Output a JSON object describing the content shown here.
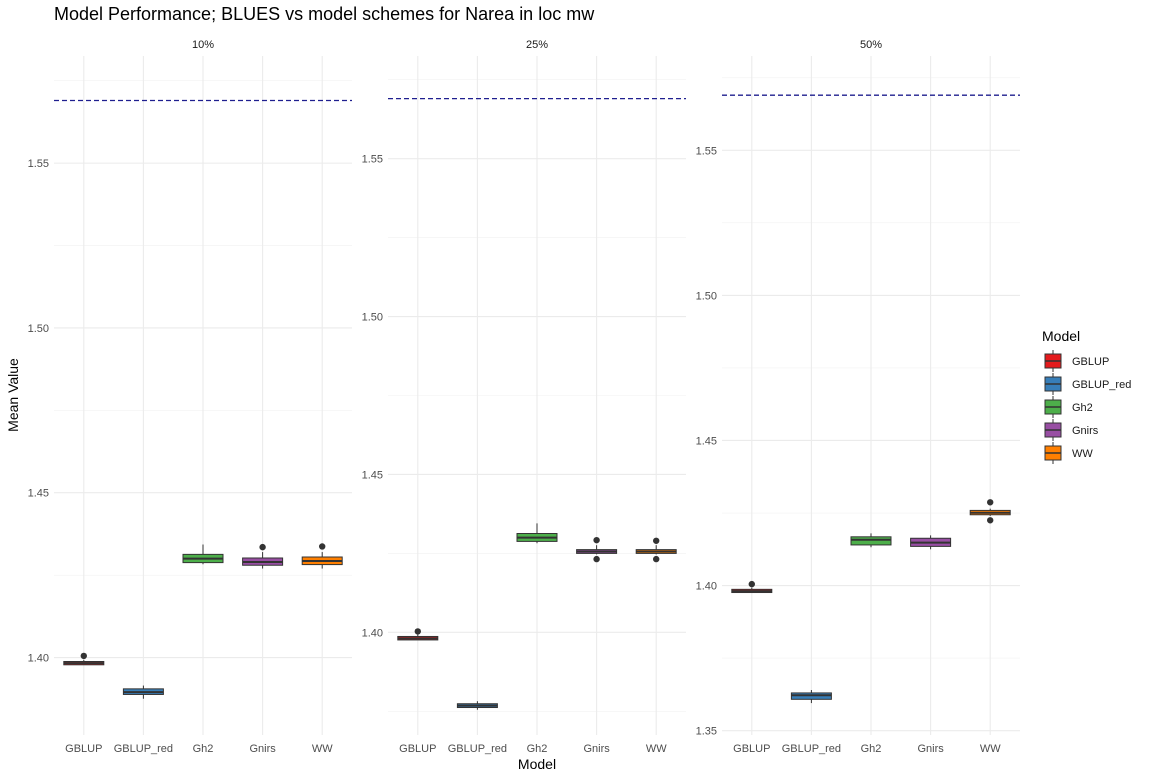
{
  "chart_data": {
    "type": "boxplot",
    "title": "Model Performance; BLUES vs model schemes for Narea in loc mw",
    "xlabel": "Model",
    "ylabel": "Mean Value",
    "legend": {
      "title": "Model",
      "placement": "right",
      "entries": [
        {
          "name": "GBLUP",
          "color": "#e41a1c"
        },
        {
          "name": "GBLUP_red",
          "color": "#377eb8"
        },
        {
          "name": "Gh2",
          "color": "#4daf4a"
        },
        {
          "name": "Gnirs",
          "color": "#984ea3"
        },
        {
          "name": "WW",
          "color": "#ff7f00"
        }
      ]
    },
    "categories": [
      "GBLUP",
      "GBLUP_red",
      "Gh2",
      "Gnirs",
      "WW"
    ],
    "reference_line": {
      "value": 1.569,
      "style": "dashed",
      "color": "#1f1f8f"
    },
    "grid": true,
    "panels": [
      {
        "label": "10%",
        "ylim": [
          1.3765,
          1.5825
        ],
        "yticks": [
          1.4,
          1.45,
          1.5,
          1.55
        ],
        "boxes": [
          {
            "model": "GBLUP",
            "min": 1.3978,
            "q1": 1.3978,
            "median": 1.3983,
            "q3": 1.3988,
            "max": 1.3993,
            "outliers": [
              1.4005
            ]
          },
          {
            "model": "GBLUP_red",
            "min": 1.3875,
            "q1": 1.3888,
            "median": 1.3895,
            "q3": 1.3905,
            "max": 1.3915,
            "outliers": []
          },
          {
            "model": "Gh2",
            "min": 1.4283,
            "q1": 1.4288,
            "median": 1.43,
            "q3": 1.4313,
            "max": 1.4343,
            "outliers": []
          },
          {
            "model": "Gnirs",
            "min": 1.427,
            "q1": 1.428,
            "median": 1.429,
            "q3": 1.4302,
            "max": 1.432,
            "outliers": [
              1.4335
            ]
          },
          {
            "model": "WW",
            "min": 1.427,
            "q1": 1.4282,
            "median": 1.4293,
            "q3": 1.4305,
            "max": 1.432,
            "outliers": [
              1.4337
            ]
          }
        ]
      },
      {
        "label": "25%",
        "ylim": [
          1.3675,
          1.5825
        ],
        "yticks": [
          1.4,
          1.45,
          1.5,
          1.55
        ],
        "boxes": [
          {
            "model": "GBLUP",
            "min": 1.3976,
            "q1": 1.3976,
            "median": 1.3981,
            "q3": 1.3987,
            "max": 1.3993,
            "outliers": [
              1.4003
            ]
          },
          {
            "model": "GBLUP_red",
            "min": 1.3755,
            "q1": 1.3762,
            "median": 1.3768,
            "q3": 1.3774,
            "max": 1.3782,
            "outliers": []
          },
          {
            "model": "Gh2",
            "min": 1.4282,
            "q1": 1.4288,
            "median": 1.43,
            "q3": 1.4313,
            "max": 1.4345,
            "outliers": []
          },
          {
            "model": "Gnirs",
            "min": 1.4247,
            "q1": 1.425,
            "median": 1.4256,
            "q3": 1.4262,
            "max": 1.4276,
            "outliers": [
              1.4232,
              1.4292
            ]
          },
          {
            "model": "WW",
            "min": 1.4247,
            "q1": 1.425,
            "median": 1.4256,
            "q3": 1.4262,
            "max": 1.4276,
            "outliers": [
              1.4232,
              1.429
            ]
          }
        ]
      },
      {
        "label": "50%",
        "ylim": [
          1.3485,
          1.5825
        ],
        "yticks": [
          1.35,
          1.4,
          1.45,
          1.5,
          1.55
        ],
        "boxes": [
          {
            "model": "GBLUP",
            "min": 1.3976,
            "q1": 1.3976,
            "median": 1.3981,
            "q3": 1.3987,
            "max": 1.3993,
            "outliers": [
              1.4005
            ]
          },
          {
            "model": "GBLUP_red",
            "min": 1.3595,
            "q1": 1.3608,
            "median": 1.3622,
            "q3": 1.363,
            "max": 1.364,
            "outliers": []
          },
          {
            "model": "Gh2",
            "min": 1.4132,
            "q1": 1.414,
            "median": 1.4158,
            "q3": 1.4168,
            "max": 1.418,
            "outliers": []
          },
          {
            "model": "Gnirs",
            "min": 1.4125,
            "q1": 1.4135,
            "median": 1.4148,
            "q3": 1.4163,
            "max": 1.4173,
            "outliers": []
          },
          {
            "model": "WW",
            "min": 1.424,
            "q1": 1.4244,
            "median": 1.4251,
            "q3": 1.4259,
            "max": 1.4265,
            "outliers": [
              1.4225,
              1.4287
            ]
          }
        ]
      }
    ]
  }
}
